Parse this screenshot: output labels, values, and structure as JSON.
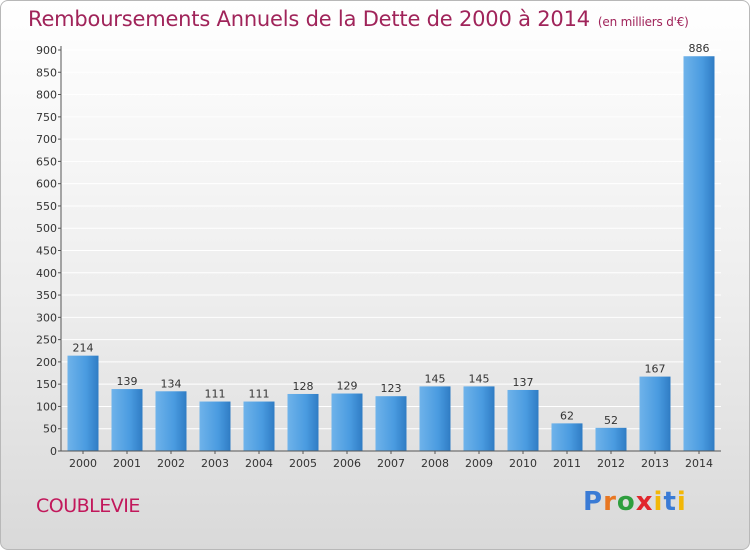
{
  "chart_data": {
    "type": "bar",
    "title": "Remboursements Annuels de la Dette de 2000 à 2014",
    "subtitle": "(en milliers d'€)",
    "categories": [
      "2000",
      "2001",
      "2002",
      "2003",
      "2004",
      "2005",
      "2006",
      "2007",
      "2008",
      "2009",
      "2010",
      "2011",
      "2012",
      "2013",
      "2014"
    ],
    "values": [
      214,
      139,
      134,
      111,
      111,
      128,
      129,
      123,
      145,
      145,
      137,
      62,
      52,
      167,
      886
    ],
    "ylim": [
      0,
      900
    ],
    "yticks": [
      0,
      50,
      100,
      150,
      200,
      250,
      300,
      350,
      400,
      450,
      500,
      550,
      600,
      650,
      700,
      750,
      800,
      850,
      900
    ],
    "grid": true,
    "bar_color": "#3d8fd6"
  },
  "footer": {
    "commune": "COUBLEVIE",
    "logo": "Proxiti"
  }
}
